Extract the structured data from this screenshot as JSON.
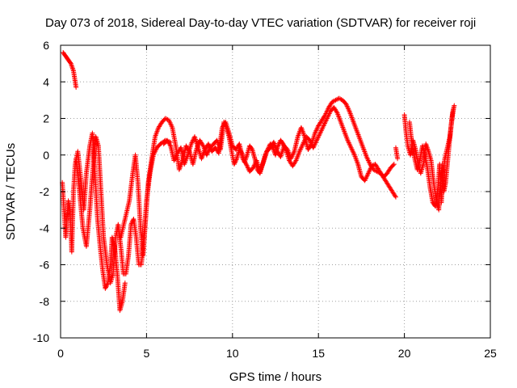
{
  "chart_data": {
    "type": "scatter",
    "title": "Day 073 of 2018, Sidereal Day-to-day VTEC variation (SDTVAR) for receiver roji",
    "xlabel": "GPS time / hours",
    "ylabel": "SDTVAR / TECUs",
    "xlim": [
      0,
      25
    ],
    "ylim": [
      -10,
      6
    ],
    "x_ticks": [
      0,
      5,
      10,
      15,
      20,
      25
    ],
    "x_tick_labels": [
      "0",
      "5",
      "10",
      "15",
      "20",
      "25"
    ],
    "y_ticks": [
      -10,
      -8,
      -6,
      -4,
      -2,
      0,
      2,
      4,
      6
    ],
    "y_tick_labels": [
      "-10",
      "-8",
      "-6",
      "-4",
      "-2",
      "0",
      "2",
      "4",
      "6"
    ],
    "grid": true,
    "marker": "+",
    "series": [
      {
        "name": "SDTVAR",
        "color": "#ff0000",
        "traces": [
          [
            [
              0.15,
              5.6
            ],
            [
              0.3,
              5.4
            ],
            [
              0.45,
              5.2
            ],
            [
              0.6,
              5.0
            ],
            [
              0.75,
              4.6
            ],
            [
              0.9,
              3.7
            ]
          ],
          [
            [
              0.1,
              -1.5
            ],
            [
              0.2,
              -3.0
            ],
            [
              0.3,
              -4.5
            ],
            [
              0.45,
              -2.5
            ],
            [
              0.55,
              -3.0
            ],
            [
              0.65,
              -5.3
            ],
            [
              0.75,
              -2.0
            ],
            [
              0.85,
              -0.5
            ],
            [
              1.0,
              0.2
            ],
            [
              1.2,
              -1.5
            ],
            [
              1.35,
              -3.0
            ],
            [
              1.5,
              -1.0
            ],
            [
              1.7,
              0.5
            ],
            [
              1.85,
              1.2
            ],
            [
              2.0,
              -1.0
            ],
            [
              2.15,
              -3.5
            ],
            [
              2.3,
              -5.0
            ],
            [
              2.45,
              -6.3
            ],
            [
              2.6,
              -7.3
            ],
            [
              2.75,
              -7.0
            ],
            [
              2.9,
              -6.0
            ],
            [
              3.0,
              -4.5
            ],
            [
              3.15,
              -5.0
            ],
            [
              3.3,
              -6.5
            ],
            [
              3.45,
              -8.5
            ],
            [
              3.6,
              -8.0
            ],
            [
              3.75,
              -7.0
            ]
          ],
          [
            [
              0.9,
              -0.2
            ],
            [
              1.1,
              -2.0
            ],
            [
              1.3,
              -4.0
            ],
            [
              1.5,
              -5.0
            ],
            [
              1.7,
              -3.0
            ],
            [
              1.9,
              -0.5
            ],
            [
              2.05,
              1.0
            ],
            [
              2.2,
              0.5
            ],
            [
              2.35,
              -2.0
            ],
            [
              2.5,
              -4.5
            ],
            [
              2.7,
              -6.0
            ],
            [
              2.9,
              -7.0
            ],
            [
              3.05,
              -6.5
            ],
            [
              3.2,
              -4.5
            ],
            [
              3.35,
              -3.8
            ],
            [
              3.5,
              -5.0
            ],
            [
              3.65,
              -6.5
            ],
            [
              3.8,
              -6.5
            ],
            [
              3.95,
              -5.5
            ],
            [
              4.1,
              -3.8
            ],
            [
              4.25,
              -3.5
            ],
            [
              4.4,
              -4.5
            ],
            [
              4.55,
              -6.0
            ],
            [
              4.7,
              -6.0
            ],
            [
              4.85,
              -4.5
            ],
            [
              5.0,
              -2.5
            ],
            [
              5.2,
              -1.0
            ],
            [
              5.4,
              0.0
            ],
            [
              5.6,
              0.4
            ],
            [
              5.8,
              0.6
            ],
            [
              6.1,
              0.8
            ],
            [
              6.4,
              0.7
            ]
          ],
          [
            [
              3.5,
              -4.5
            ],
            [
              3.75,
              -3.5
            ],
            [
              4.0,
              -2.5
            ],
            [
              4.2,
              -1.0
            ],
            [
              4.35,
              0.0
            ],
            [
              4.5,
              -1.5
            ],
            [
              4.65,
              -4.0
            ],
            [
              4.8,
              -5.5
            ],
            [
              4.95,
              -3.5
            ],
            [
              5.1,
              -1.5
            ],
            [
              5.3,
              -0.2
            ],
            [
              5.5,
              1.0
            ],
            [
              5.7,
              1.5
            ],
            [
              5.9,
              1.8
            ],
            [
              6.1,
              2.0
            ],
            [
              6.3,
              1.9
            ],
            [
              6.5,
              1.5
            ],
            [
              6.7,
              0.5
            ],
            [
              6.9,
              -0.8
            ],
            [
              7.1,
              -0.3
            ],
            [
              7.3,
              0.5
            ],
            [
              7.5,
              0.2
            ],
            [
              7.7,
              -0.5
            ],
            [
              7.9,
              0.3
            ],
            [
              8.1,
              0.8
            ],
            [
              8.3,
              0.5
            ],
            [
              8.5,
              0.0
            ],
            [
              8.7,
              0.4
            ],
            [
              8.9,
              0.6
            ],
            [
              9.1,
              0.8
            ],
            [
              9.3,
              0.3
            ],
            [
              9.5,
              1.8
            ],
            [
              9.65,
              1.5
            ],
            [
              9.8,
              1.0
            ],
            [
              9.95,
              0.2
            ],
            [
              10.1,
              -0.5
            ],
            [
              10.25,
              -0.2
            ],
            [
              10.4,
              0.3
            ],
            [
              10.55,
              0.1
            ],
            [
              10.7,
              -0.4
            ],
            [
              10.85,
              0.0
            ],
            [
              11.0,
              0.5
            ],
            [
              11.15,
              0.3
            ],
            [
              11.3,
              -0.2
            ],
            [
              11.45,
              -0.8
            ],
            [
              11.6,
              -1.0
            ],
            [
              11.75,
              -0.5
            ],
            [
              11.9,
              0.0
            ],
            [
              12.05,
              0.3
            ],
            [
              12.2,
              0.6
            ],
            [
              12.35,
              0.4
            ],
            [
              12.5,
              0.0
            ],
            [
              12.65,
              0.5
            ],
            [
              12.8,
              0.8
            ],
            [
              12.95,
              0.6
            ],
            [
              13.1,
              0.3
            ],
            [
              13.3,
              -0.3
            ],
            [
              13.5,
              -0.6
            ],
            [
              13.7,
              -0.3
            ],
            [
              13.9,
              0.2
            ],
            [
              14.1,
              0.6
            ],
            [
              14.3,
              1.0
            ],
            [
              14.5,
              0.8
            ],
            [
              14.7,
              0.4
            ],
            [
              14.9,
              0.8
            ],
            [
              15.1,
              1.2
            ],
            [
              15.3,
              1.6
            ],
            [
              15.5,
              2.0
            ],
            [
              15.7,
              2.4
            ],
            [
              15.9,
              2.6
            ],
            [
              16.1,
              2.3
            ],
            [
              16.3,
              1.8
            ],
            [
              16.5,
              1.3
            ],
            [
              16.7,
              0.8
            ],
            [
              16.9,
              0.4
            ],
            [
              17.1,
              0.0
            ],
            [
              17.3,
              -0.5
            ],
            [
              17.5,
              -1.2
            ],
            [
              17.7,
              -1.4
            ],
            [
              17.9,
              -1.0
            ],
            [
              18.1,
              -0.6
            ],
            [
              18.3,
              -0.5
            ],
            [
              18.5,
              -0.8
            ],
            [
              18.7,
              -1.1
            ],
            [
              18.9,
              -1.4
            ],
            [
              19.1,
              -1.7
            ],
            [
              19.3,
              -2.0
            ],
            [
              19.5,
              -2.3
            ]
          ],
          [
            [
              6.0,
              0.6
            ],
            [
              6.2,
              0.8
            ],
            [
              6.4,
              0.5
            ],
            [
              6.6,
              -0.3
            ],
            [
              6.8,
              0.1
            ],
            [
              7.0,
              0.4
            ],
            [
              7.2,
              -0.5
            ],
            [
              7.4,
              0.0
            ],
            [
              7.6,
              0.6
            ],
            [
              7.8,
              1.0
            ],
            [
              8.0,
              0.4
            ],
            [
              8.2,
              -0.2
            ],
            [
              8.4,
              0.3
            ],
            [
              8.6,
              0.6
            ],
            [
              8.8,
              0.2
            ],
            [
              9.0,
              0.4
            ],
            [
              9.2,
              0.1
            ],
            [
              9.4,
              1.5
            ],
            [
              9.6,
              1.8
            ],
            [
              9.8,
              1.2
            ],
            [
              10.0,
              0.5
            ],
            [
              10.2,
              0.3
            ],
            [
              10.4,
              0.6
            ],
            [
              10.6,
              -0.2
            ],
            [
              10.8,
              -0.5
            ],
            [
              11.0,
              -0.9
            ],
            [
              11.2,
              -0.7
            ],
            [
              11.4,
              -0.3
            ],
            [
              11.6,
              -0.9
            ],
            [
              11.8,
              -0.4
            ],
            [
              12.0,
              0.2
            ],
            [
              12.2,
              0.4
            ],
            [
              12.4,
              0.7
            ],
            [
              12.6,
              0.2
            ],
            [
              12.8,
              -0.1
            ],
            [
              13.0,
              0.5
            ],
            [
              13.2,
              0.3
            ],
            [
              13.4,
              -0.2
            ],
            [
              13.6,
              0.2
            ],
            [
              13.8,
              1.0
            ],
            [
              14.0,
              1.5
            ],
            [
              14.2,
              1.0
            ],
            [
              14.4,
              0.3
            ],
            [
              14.6,
              0.6
            ],
            [
              14.8,
              1.2
            ],
            [
              15.0,
              1.6
            ],
            [
              15.2,
              1.9
            ],
            [
              15.4,
              2.2
            ],
            [
              15.6,
              2.6
            ],
            [
              15.8,
              2.9
            ],
            [
              16.0,
              3.0
            ],
            [
              16.2,
              3.1
            ],
            [
              16.4,
              3.0
            ],
            [
              16.6,
              2.8
            ],
            [
              16.8,
              2.4
            ],
            [
              17.0,
              1.9
            ],
            [
              17.2,
              1.4
            ],
            [
              17.4,
              0.9
            ],
            [
              17.6,
              0.4
            ],
            [
              17.8,
              -0.1
            ],
            [
              18.0,
              -0.5
            ],
            [
              18.2,
              -0.8
            ],
            [
              18.4,
              -0.9
            ],
            [
              18.6,
              -1.0
            ],
            [
              18.8,
              -1.2
            ],
            [
              19.0,
              -1.0
            ],
            [
              19.2,
              -0.7
            ],
            [
              19.4,
              -0.5
            ]
          ],
          [
            [
              19.5,
              0.4
            ],
            [
              19.6,
              -0.2
            ]
          ],
          [
            [
              20.0,
              2.2
            ],
            [
              20.1,
              1.2
            ],
            [
              20.2,
              0.5
            ],
            [
              20.35,
              0.0
            ],
            [
              20.5,
              0.8
            ],
            [
              20.65,
              0.3
            ],
            [
              20.8,
              -0.5
            ],
            [
              20.95,
              -1.0
            ],
            [
              21.1,
              -0.5
            ],
            [
              21.25,
              0.6
            ],
            [
              21.4,
              0.2
            ],
            [
              21.55,
              -0.3
            ],
            [
              21.7,
              -1.5
            ],
            [
              21.85,
              -2.5
            ],
            [
              22.0,
              -3.0
            ],
            [
              22.1,
              -1.5
            ],
            [
              22.2,
              -0.5
            ],
            [
              22.3,
              -2.0
            ],
            [
              22.4,
              -1.5
            ],
            [
              22.5,
              -0.5
            ],
            [
              22.6,
              0.5
            ],
            [
              22.7,
              1.5
            ],
            [
              22.8,
              2.3
            ],
            [
              22.9,
              2.7
            ]
          ],
          [
            [
              20.3,
              1.8
            ],
            [
              20.45,
              0.5
            ],
            [
              20.6,
              -0.2
            ],
            [
              20.75,
              -0.8
            ],
            [
              20.9,
              -0.3
            ],
            [
              21.05,
              0.5
            ],
            [
              21.2,
              0.0
            ],
            [
              21.35,
              -0.8
            ],
            [
              21.5,
              -1.8
            ],
            [
              21.65,
              -2.6
            ],
            [
              21.8,
              -2.8
            ],
            [
              21.95,
              -1.8
            ],
            [
              22.05,
              -0.5
            ],
            [
              22.15,
              -2.6
            ],
            [
              22.25,
              -1.0
            ],
            [
              22.35,
              -0.2
            ],
            [
              22.65,
              1.0
            ],
            [
              22.75,
              1.8
            ],
            [
              22.85,
              2.5
            ]
          ]
        ]
      }
    ]
  }
}
